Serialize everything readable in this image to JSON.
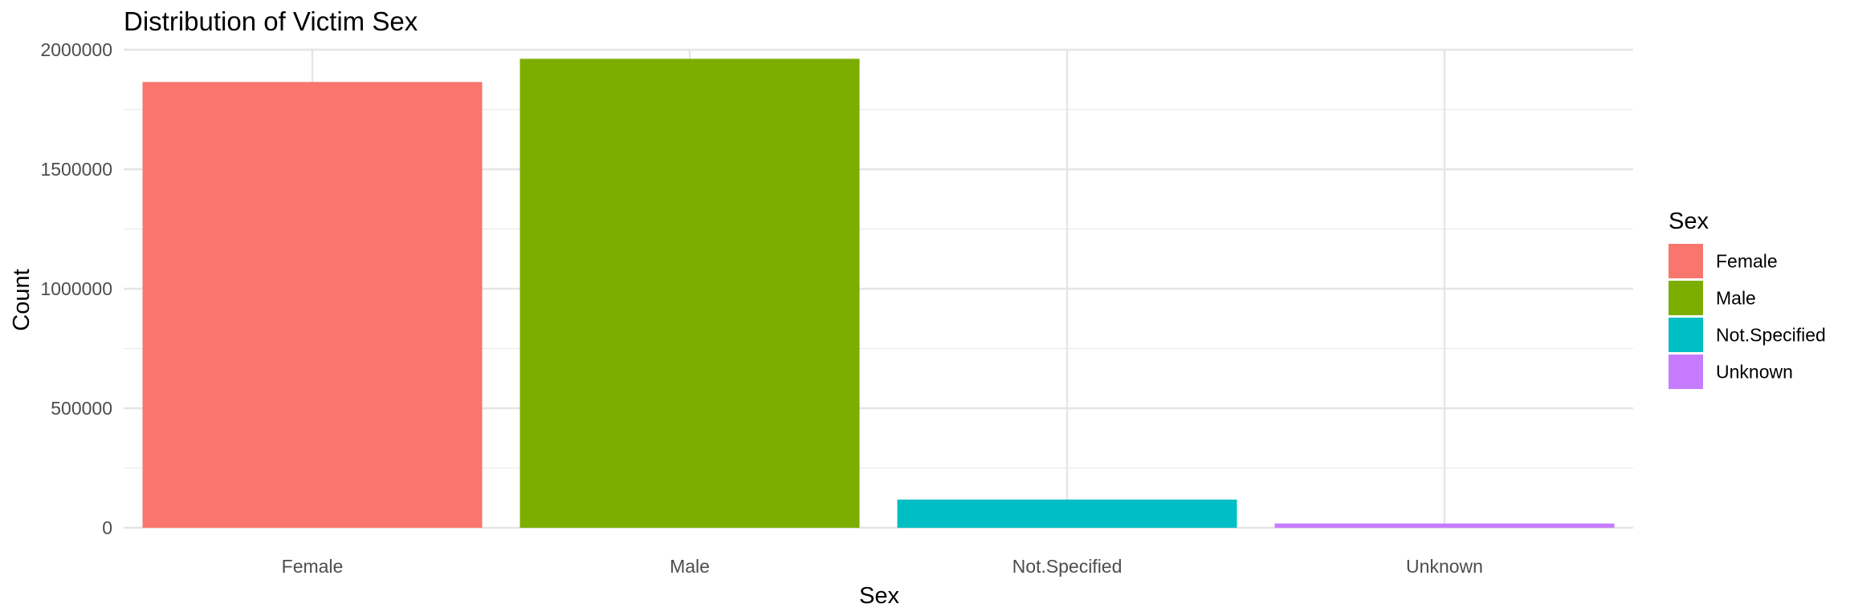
{
  "chart_data": {
    "type": "bar",
    "title": "Distribution of Victim Sex",
    "xlabel": "Sex",
    "ylabel": "Count",
    "categories": [
      "Female",
      "Male",
      "Not.Specified",
      "Unknown"
    ],
    "values": [
      1865000,
      1962000,
      118000,
      18000
    ],
    "ylim": [
      0,
      2000000
    ],
    "yticks": [
      "0",
      "500000",
      "1000000",
      "1500000",
      "2000000"
    ],
    "grid": true,
    "legend": {
      "title": "Sex",
      "position": "right",
      "items": [
        "Female",
        "Male",
        "Not.Specified",
        "Unknown"
      ]
    },
    "colors": [
      "#F8766D",
      "#7CAE00",
      "#00BFC4",
      "#C77CFF"
    ]
  }
}
